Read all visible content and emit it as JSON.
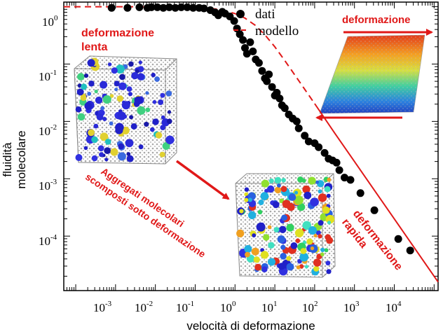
{
  "chart_data": {
    "type": "scatter",
    "xscale": "log",
    "yscale": "log",
    "xlim_exp": [
      -4.3,
      5.1
    ],
    "ylim_exp": [
      -4.95,
      0.08
    ],
    "xlabel": "velocità di deformazione",
    "ylabel_line1": "fluidità",
    "ylabel_line2": "molecolare",
    "x_tick_labels": [
      {
        "base": "10",
        "exp": "-3",
        "value": 0.001
      },
      {
        "base": "10",
        "exp": "-2",
        "value": 0.01
      },
      {
        "base": "10",
        "exp": "-1",
        "value": 0.1
      },
      {
        "base": "10",
        "exp": "0",
        "value": 1
      },
      {
        "base": "10",
        "exp": "1",
        "value": 10
      },
      {
        "base": "10",
        "exp": "2",
        "value": 100
      },
      {
        "base": "10",
        "exp": "3",
        "value": 1000
      },
      {
        "base": "10",
        "exp": "4",
        "value": 10000
      }
    ],
    "y_tick_labels": [
      {
        "base": "10",
        "exp": "0",
        "value": 1
      },
      {
        "base": "10",
        "exp": "-1",
        "value": 0.1
      },
      {
        "base": "10",
        "exp": "-2",
        "value": 0.01
      },
      {
        "base": "10",
        "exp": "-3",
        "value": 0.001
      },
      {
        "base": "10",
        "exp": "-4",
        "value": 0.0001
      }
    ],
    "legend": [
      {
        "label": "dati",
        "style": "black-dot"
      },
      {
        "label": "modello",
        "style": "red-dashed"
      }
    ],
    "series": [
      {
        "name": "dati",
        "style": "black-dot",
        "points_log10": [
          [
            -3.1,
            -0.02
          ],
          [
            -2.7,
            -0.02
          ],
          [
            -2.4,
            -0.01
          ],
          [
            -2.2,
            -0.02
          ],
          [
            -2.1,
            -0.01
          ],
          [
            -1.95,
            -0.01
          ],
          [
            -1.8,
            -0.02
          ],
          [
            -1.65,
            -0.01
          ],
          [
            -1.5,
            -0.02
          ],
          [
            -1.35,
            -0.01
          ],
          [
            -1.2,
            -0.01
          ],
          [
            -1.05,
            -0.02
          ],
          [
            -0.9,
            -0.02
          ],
          [
            -0.78,
            -0.03
          ],
          [
            -0.62,
            -0.06
          ],
          [
            -0.5,
            -0.1
          ],
          [
            -0.42,
            -0.15
          ],
          [
            -0.32,
            -0.09
          ],
          [
            -0.25,
            -0.12
          ],
          [
            -0.13,
            -0.17
          ],
          [
            -0.02,
            -0.25
          ],
          [
            0.05,
            -0.38
          ],
          [
            0.12,
            -0.48
          ],
          [
            0.2,
            -0.58
          ],
          [
            0.25,
            -0.72
          ],
          [
            0.3,
            -0.82
          ],
          [
            0.38,
            -0.62
          ],
          [
            0.45,
            -0.78
          ],
          [
            0.52,
            -0.92
          ],
          [
            0.6,
            -0.98
          ],
          [
            0.68,
            -1.12
          ],
          [
            0.75,
            -1.25
          ],
          [
            0.8,
            -1.3
          ],
          [
            0.85,
            -1.18
          ],
          [
            0.93,
            -1.4
          ],
          [
            1.0,
            -1.55
          ],
          [
            1.05,
            -1.5
          ],
          [
            1.12,
            -1.6
          ],
          [
            1.18,
            -1.72
          ],
          [
            1.25,
            -1.77
          ],
          [
            1.35,
            -1.88
          ],
          [
            1.45,
            -1.95
          ],
          [
            1.55,
            -2.0
          ],
          [
            1.6,
            -2.12
          ],
          [
            1.75,
            -2.25
          ],
          [
            1.85,
            -2.35
          ],
          [
            2.0,
            -2.38
          ],
          [
            2.1,
            -2.45
          ],
          [
            2.25,
            -2.55
          ],
          [
            2.35,
            -2.65
          ],
          [
            2.45,
            -2.68
          ],
          [
            2.55,
            -2.72
          ],
          [
            2.62,
            -2.85
          ],
          [
            2.75,
            -2.98
          ],
          [
            2.9,
            -3.02
          ],
          [
            3.15,
            -3.25
          ],
          [
            3.5,
            -3.55
          ],
          [
            4.1,
            -4.05
          ],
          [
            4.4,
            -4.25
          ]
        ]
      },
      {
        "name": "modello",
        "style": "red-dashed-then-solid",
        "dashed_until_log10_x": 2.0,
        "points_log10": [
          [
            -4.3,
            0.0
          ],
          [
            -3.0,
            0.0
          ],
          [
            -2.0,
            -0.001
          ],
          [
            -1.5,
            -0.004
          ],
          [
            -1.0,
            -0.013
          ],
          [
            -0.5,
            -0.04
          ],
          [
            -0.25,
            -0.07
          ],
          [
            0.0,
            -0.12
          ],
          [
            0.25,
            -0.2
          ],
          [
            0.5,
            -0.32
          ],
          [
            0.75,
            -0.49
          ],
          [
            1.0,
            -0.7
          ],
          [
            1.25,
            -0.94
          ],
          [
            1.5,
            -1.19
          ],
          [
            1.75,
            -1.44
          ],
          [
            2.0,
            -1.69
          ],
          [
            2.5,
            -2.2
          ],
          [
            3.0,
            -2.7
          ],
          [
            3.5,
            -3.2
          ],
          [
            4.0,
            -3.7
          ],
          [
            4.5,
            -4.2
          ],
          [
            5.1,
            -4.8
          ]
        ]
      }
    ],
    "annotations": {
      "slow_line1": "deformazione",
      "slow_line2": "lenta",
      "fast_line1": "deformazione",
      "fast_line2": "rapida",
      "shear_label": "deformazione",
      "aggregates_line1": "Aggregati molecolari",
      "aggregates_line2": "scomposti sotto deformazione"
    }
  },
  "colors": {
    "data": "#000000",
    "model": "#e01818",
    "annotation": "#e01818",
    "axes": "#000000"
  }
}
